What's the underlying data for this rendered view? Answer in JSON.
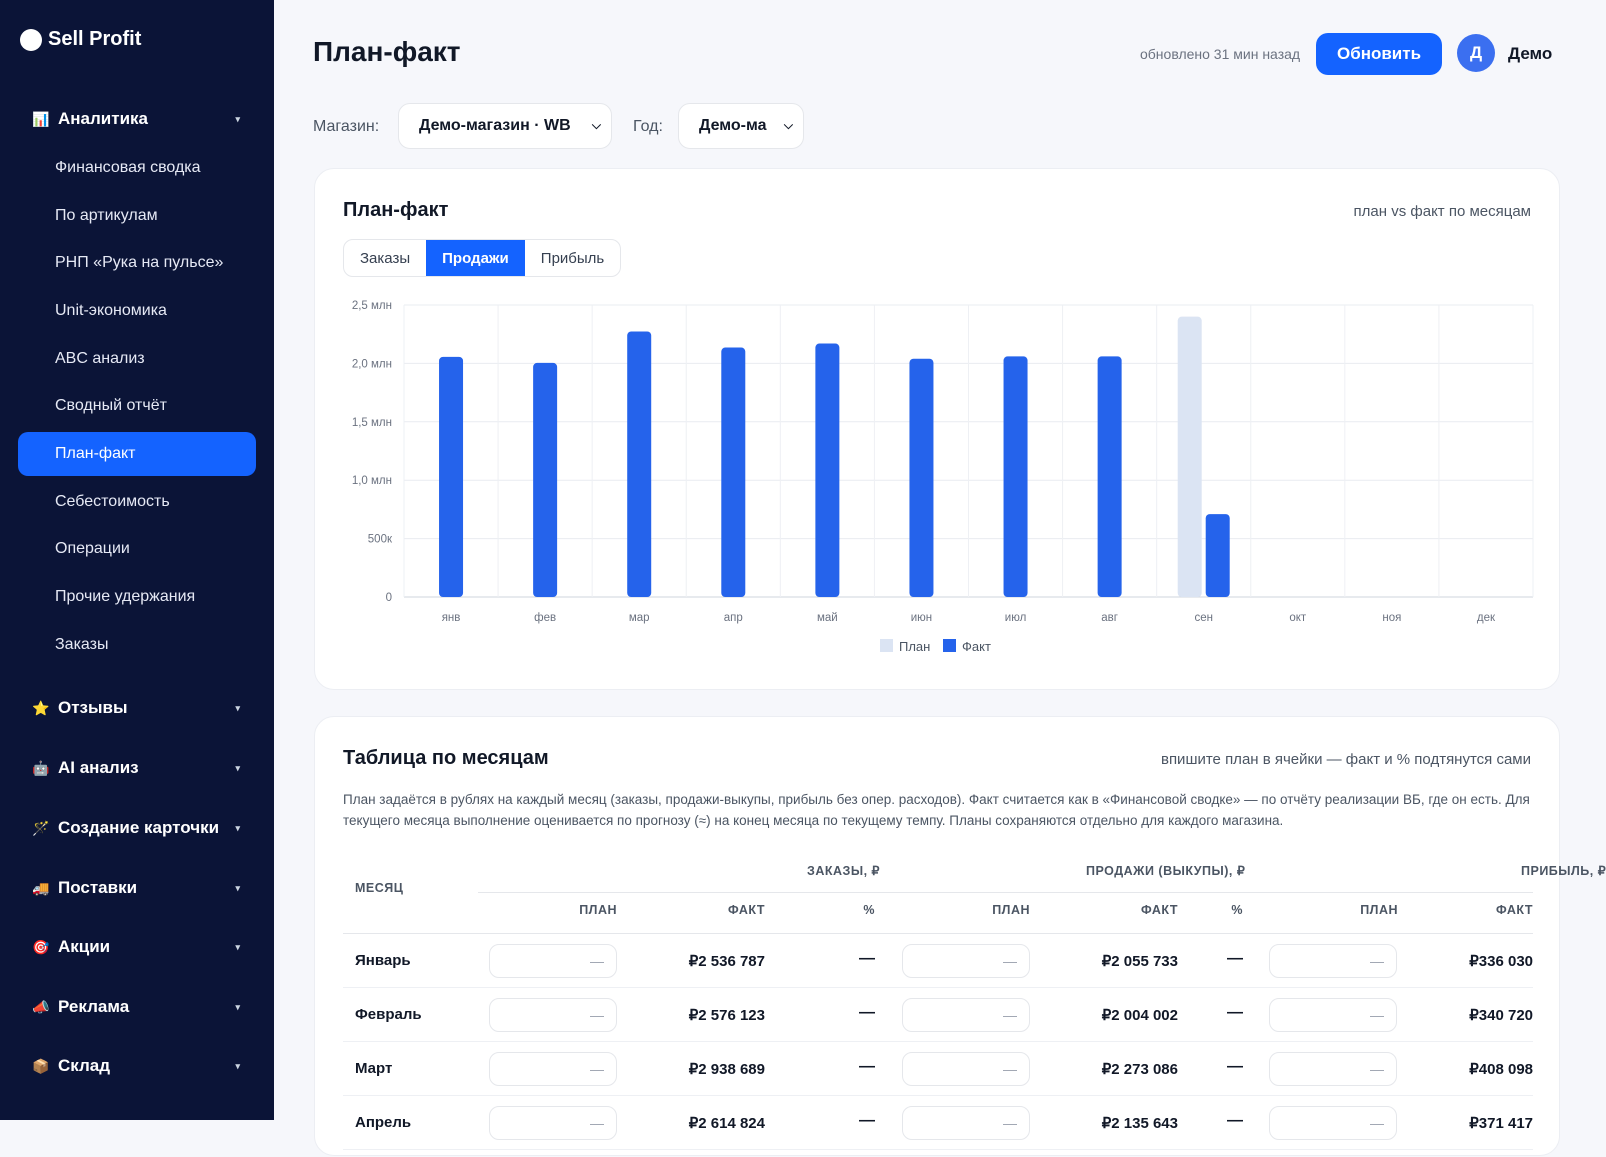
{
  "brand": {
    "name": "Sell Profit"
  },
  "sidebar": {
    "groups": [
      {
        "label": "Аналитика",
        "icon": "bar-chart-icon",
        "glyph": "📊"
      },
      {
        "label": "Отзывы",
        "icon": "star-icon",
        "glyph": "⭐"
      },
      {
        "label": "AI анализ",
        "icon": "robot-icon",
        "glyph": "🤖"
      },
      {
        "label": "Создание карточки",
        "icon": "magic-wand-icon",
        "glyph": "🪄"
      },
      {
        "label": "Поставки",
        "icon": "truck-icon",
        "glyph": "🚚"
      },
      {
        "label": "Акции",
        "icon": "target-icon",
        "glyph": "🎯"
      },
      {
        "label": "Реклама",
        "icon": "megaphone-icon",
        "glyph": "📣"
      },
      {
        "label": "Склад",
        "icon": "package-icon",
        "glyph": "📦"
      }
    ],
    "items": [
      {
        "label": "Финансовая сводка"
      },
      {
        "label": "По артикулам"
      },
      {
        "label": "РНП «Рука на пульсе»"
      },
      {
        "label": "Unit-экономика"
      },
      {
        "label": "ABC анализ"
      },
      {
        "label": "Сводный отчёт"
      },
      {
        "label": "План-факт",
        "active": true
      },
      {
        "label": "Себестоимость"
      },
      {
        "label": "Операции"
      },
      {
        "label": "Прочие удержания"
      },
      {
        "label": "Заказы"
      }
    ]
  },
  "header": {
    "title": "План-факт",
    "updated": "обновлено 31 мин назад",
    "refresh_label": "Обновить",
    "avatar_letter": "Д",
    "user_name": "Демо"
  },
  "filters": {
    "store_label": "Магазин:",
    "store_value": "Демо-магазин · WB",
    "year_label": "Год:",
    "year_value": "Демо-ма"
  },
  "chart_card": {
    "title": "План-факт",
    "hint": "план vs факт по месяцам",
    "tabs": [
      "Заказы",
      "Продажи",
      "Прибыль"
    ],
    "active_tab": "Продажи"
  },
  "colors": {
    "accent": "#1463ff",
    "plan": "#dbe4f3",
    "fact": "#2563eb",
    "sidebar": "#0b1437"
  },
  "chart_data": {
    "type": "bar",
    "categories": [
      "янв",
      "фев",
      "мар",
      "апр",
      "май",
      "июн",
      "июл",
      "авг",
      "сен",
      "окт",
      "ноя",
      "дек"
    ],
    "series": [
      {
        "name": "План",
        "values": [
          null,
          null,
          null,
          null,
          null,
          null,
          null,
          null,
          2400000,
          null,
          null,
          null
        ]
      },
      {
        "name": "Факт",
        "values": [
          2055733,
          2004002,
          2273086,
          2135643,
          2170000,
          2040000,
          2060000,
          2060000,
          710000,
          null,
          null,
          null
        ]
      }
    ],
    "yticks": [
      0,
      500000,
      1000000,
      1500000,
      2000000,
      2500000
    ],
    "ytick_labels": [
      "0",
      "500к",
      "1,0 млн",
      "1,5 млн",
      "2,0 млн",
      "2,5 млн"
    ],
    "ylim": [
      0,
      2500000
    ],
    "legend": "bottom-center",
    "grid": true
  },
  "table_card": {
    "title": "Таблица по месяцам",
    "hint": "впишите план в ячейки — факт и % подтянутся сами",
    "description": "План задаётся в рублях на каждый месяц (заказы, продажи-выкупы, прибыль без опер. расходов). Факт считается как в «Финансовой сводке» — по отчёту реализации ВБ, где он есть. Для текущего месяца выполнение оценивается по прогнозу (≈) на конец месяца по текущему темпу. Планы сохраняются отдельно для каждого магазина.",
    "col_month": "МЕСЯЦ",
    "groups": [
      "ЗАКАЗЫ, ₽",
      "ПРОДАЖИ (ВЫКУПЫ), ₽",
      "ПРИБЫЛЬ, ₽"
    ],
    "sub_plan": "ПЛАН",
    "sub_fact": "ФАКТ",
    "sub_pct": "%",
    "placeholder": "—",
    "rows": [
      {
        "month": "Январь",
        "orders_fact": "₽2 536 787",
        "orders_pct": "—",
        "sales_fact": "₽2 055 733",
        "sales_pct": "—",
        "profit_fact": "₽336 030"
      },
      {
        "month": "Февраль",
        "orders_fact": "₽2 576 123",
        "orders_pct": "—",
        "sales_fact": "₽2 004 002",
        "sales_pct": "—",
        "profit_fact": "₽340 720"
      },
      {
        "month": "Март",
        "orders_fact": "₽2 938 689",
        "orders_pct": "—",
        "sales_fact": "₽2 273 086",
        "sales_pct": "—",
        "profit_fact": "₽408 098"
      },
      {
        "month": "Апрель",
        "orders_fact": "₽2 614 824",
        "orders_pct": "—",
        "sales_fact": "₽2 135 643",
        "sales_pct": "—",
        "profit_fact": "₽371 417"
      }
    ]
  }
}
